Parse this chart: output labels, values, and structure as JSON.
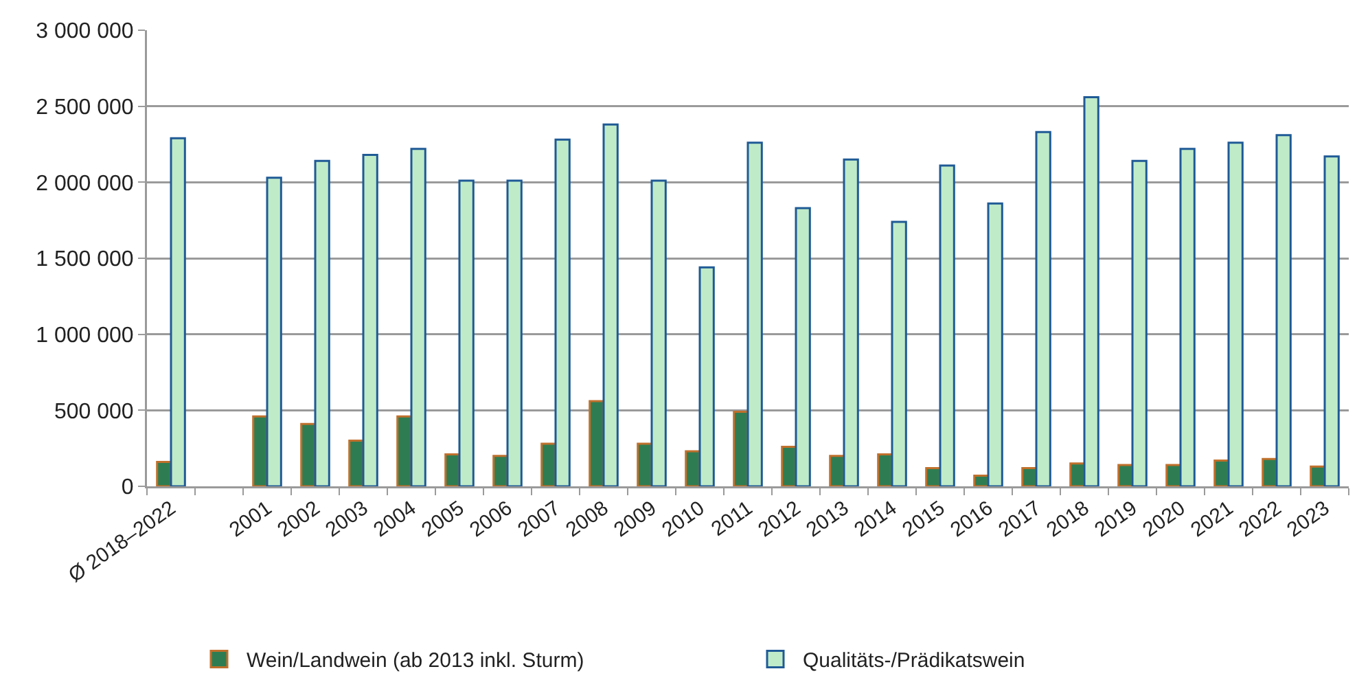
{
  "chart_data": {
    "type": "bar",
    "categories": [
      "Ø 2018–2022",
      null,
      "2001",
      "2002",
      "2003",
      "2004",
      "2005",
      "2006",
      "2007",
      "2008",
      "2009",
      "2010",
      "2011",
      "2012",
      "2013",
      "2014",
      "2015",
      "2016",
      "2017",
      "2018",
      "2019",
      "2020",
      "2021",
      "2022",
      "2023"
    ],
    "series": [
      {
        "name": "Wein/Landwein (ab 2013 inkl. Sturm)",
        "color": "#2e7d52",
        "values": [
          160000,
          null,
          460000,
          410000,
          300000,
          460000,
          210000,
          200000,
          280000,
          560000,
          280000,
          230000,
          490000,
          260000,
          200000,
          210000,
          120000,
          70000,
          120000,
          150000,
          140000,
          140000,
          170000,
          180000,
          130000
        ]
      },
      {
        "name": "Qualitäts-/Prädikatswein",
        "color": "#c0ebc8",
        "values": [
          2290000,
          null,
          2030000,
          2140000,
          2180000,
          2220000,
          2010000,
          2010000,
          2280000,
          2380000,
          2010000,
          1440000,
          2260000,
          1830000,
          2150000,
          1740000,
          2110000,
          1860000,
          2330000,
          2560000,
          2140000,
          2220000,
          2260000,
          2310000,
          2170000
        ]
      }
    ],
    "ylim": [
      0,
      3000000
    ],
    "yticks": [
      {
        "value": 0,
        "label": "0"
      },
      {
        "value": 500000,
        "label": "500 000"
      },
      {
        "value": 1000000,
        "label": "1 000 000"
      },
      {
        "value": 1500000,
        "label": "1 500 000"
      },
      {
        "value": 2000000,
        "label": "2 000 000"
      },
      {
        "value": 2500000,
        "label": "2 500 000"
      },
      {
        "value": 3000000,
        "label": "3 000 000"
      }
    ],
    "grid": "y",
    "legend": "bottom"
  }
}
